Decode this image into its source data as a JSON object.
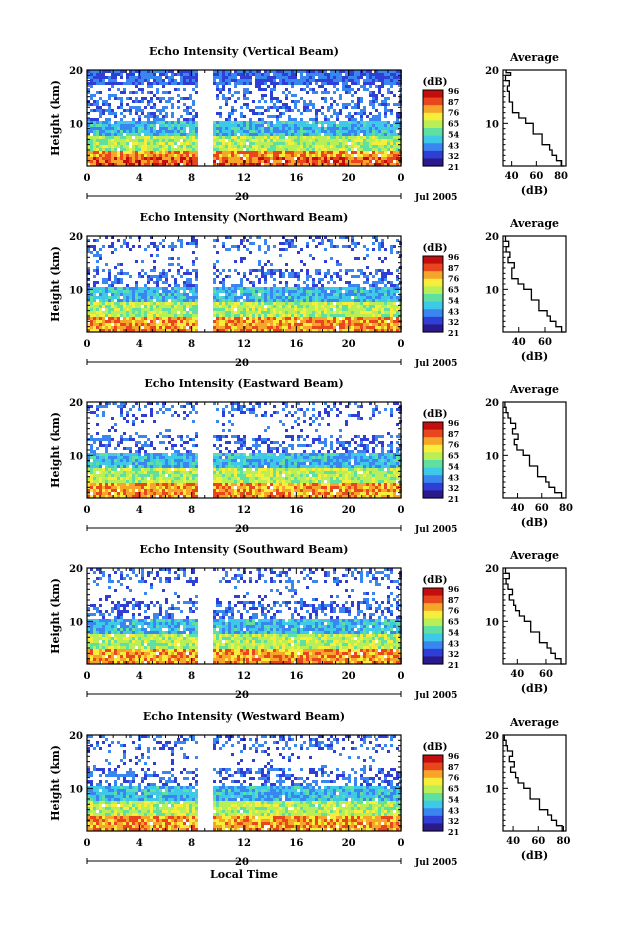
{
  "chart_data": [
    {
      "type": "heatmap",
      "title": "Echo Intensity (Vertical Beam)",
      "ylabel": "Height (km)",
      "yticks": [
        10,
        20
      ],
      "ylim": [
        2,
        20
      ],
      "xticks": [
        "0",
        "4",
        "8",
        "12",
        "16",
        "20",
        "0"
      ],
      "xlim": [
        0,
        24
      ],
      "date_day": "20",
      "date_month": "Jul 2005",
      "colorbar": {
        "label": "(dB)",
        "ticks": [
          96,
          87,
          76,
          65,
          54,
          43,
          32,
          21
        ]
      },
      "profile": {
        "title": "Average",
        "xlabel": "(dB)",
        "xticks": [
          40,
          60,
          80
        ],
        "xlim": [
          33,
          84
        ],
        "yticks": [
          10,
          20
        ]
      }
    },
    {
      "type": "heatmap",
      "title": "Echo Intensity (Northward Beam)",
      "ylabel": "Height (km)",
      "yticks": [
        10,
        20
      ],
      "ylim": [
        2,
        20
      ],
      "xticks": [
        "0",
        "4",
        "8",
        "12",
        "16",
        "20",
        "0"
      ],
      "xlim": [
        0,
        24
      ],
      "date_day": "20",
      "date_month": "Jul 2005",
      "colorbar": {
        "label": "(dB)",
        "ticks": [
          96,
          87,
          76,
          65,
          54,
          43,
          32,
          21
        ]
      },
      "profile": {
        "title": "Average",
        "xlabel": "(dB)",
        "xticks": [
          40,
          60
        ],
        "xlim": [
          28,
          76
        ],
        "yticks": [
          10,
          20
        ]
      }
    },
    {
      "type": "heatmap",
      "title": "Echo Intensity (Eastward Beam)",
      "ylabel": "Height (km)",
      "yticks": [
        10,
        20
      ],
      "ylim": [
        2,
        20
      ],
      "xticks": [
        "0",
        "4",
        "8",
        "12",
        "16",
        "20",
        "0"
      ],
      "xlim": [
        0,
        24
      ],
      "date_day": "20",
      "date_month": "Jul 2005",
      "colorbar": {
        "label": "(dB)",
        "ticks": [
          96,
          87,
          76,
          65,
          54,
          43,
          32,
          21
        ]
      },
      "profile": {
        "title": "Average",
        "xlabel": "(dB)",
        "xticks": [
          40,
          60,
          80
        ],
        "xlim": [
          28,
          80
        ],
        "yticks": [
          10,
          20
        ]
      }
    },
    {
      "type": "heatmap",
      "title": "Echo Intensity (Southward Beam)",
      "ylabel": "Height (km)",
      "yticks": [
        10,
        20
      ],
      "ylim": [
        2,
        20
      ],
      "xticks": [
        "0",
        "4",
        "8",
        "12",
        "16",
        "20",
        "0"
      ],
      "xlim": [
        0,
        24
      ],
      "date_day": "20",
      "date_month": "Jul 2005",
      "colorbar": {
        "label": "(dB)",
        "ticks": [
          96,
          87,
          76,
          65,
          54,
          43,
          32,
          21
        ]
      },
      "profile": {
        "title": "Average",
        "xlabel": "(dB)",
        "xticks": [
          40,
          60
        ],
        "xlim": [
          30,
          74
        ],
        "yticks": [
          10,
          20
        ]
      }
    },
    {
      "type": "heatmap",
      "title": "Echo Intensity (Westward Beam)",
      "ylabel": "Height (km)",
      "yticks": [
        10,
        20
      ],
      "ylim": [
        2,
        20
      ],
      "xticks": [
        "0",
        "4",
        "8",
        "12",
        "16",
        "20",
        "0"
      ],
      "xlim": [
        0,
        24
      ],
      "date_day": "20",
      "date_month": "Jul 2005",
      "colorbar": {
        "label": "(dB)",
        "ticks": [
          96,
          87,
          76,
          65,
          54,
          43,
          32,
          21
        ]
      },
      "profile": {
        "title": "Average",
        "xlabel": "(dB)",
        "xticks": [
          40,
          60,
          80
        ],
        "xlim": [
          32,
          82
        ],
        "yticks": [
          10,
          20
        ]
      }
    }
  ],
  "figure": {
    "xlabel": "Local Time",
    "data_gap_hours": [
      8.7,
      9.5
    ]
  },
  "colors": {
    "scale": [
      "#2b1a8c",
      "#2f3fd6",
      "#3a86f0",
      "#3fc9e8",
      "#5fe0a0",
      "#b8ee56",
      "#f6ee3a",
      "#f7a52a",
      "#e8461c",
      "#c40e0e"
    ]
  }
}
